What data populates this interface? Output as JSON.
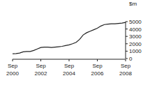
{
  "chart_data": {
    "type": "line",
    "y_label": "$m",
    "categories": [
      "Sep 2000",
      null,
      null,
      null,
      null,
      null,
      null,
      null,
      "Sep 2002",
      null,
      null,
      null,
      null,
      null,
      null,
      null,
      "Sep 2004",
      null,
      null,
      null,
      null,
      null,
      null,
      null,
      "Sep 2006",
      null,
      null,
      null,
      null,
      null,
      null,
      null,
      "Sep 2008"
    ],
    "values": [
      650,
      680,
      750,
      900,
      950,
      950,
      1100,
      1300,
      1500,
      1550,
      1550,
      1500,
      1550,
      1600,
      1650,
      1750,
      1850,
      2000,
      2200,
      2600,
      3200,
      3500,
      3700,
      3900,
      4100,
      4400,
      4600,
      4650,
      4700,
      4700,
      4750,
      4800,
      4900
    ],
    "color": "#222222",
    "ylim": [
      0,
      5000
    ],
    "yticks": [
      0,
      1000,
      2000,
      3000,
      4000,
      5000
    ],
    "grid": false
  }
}
